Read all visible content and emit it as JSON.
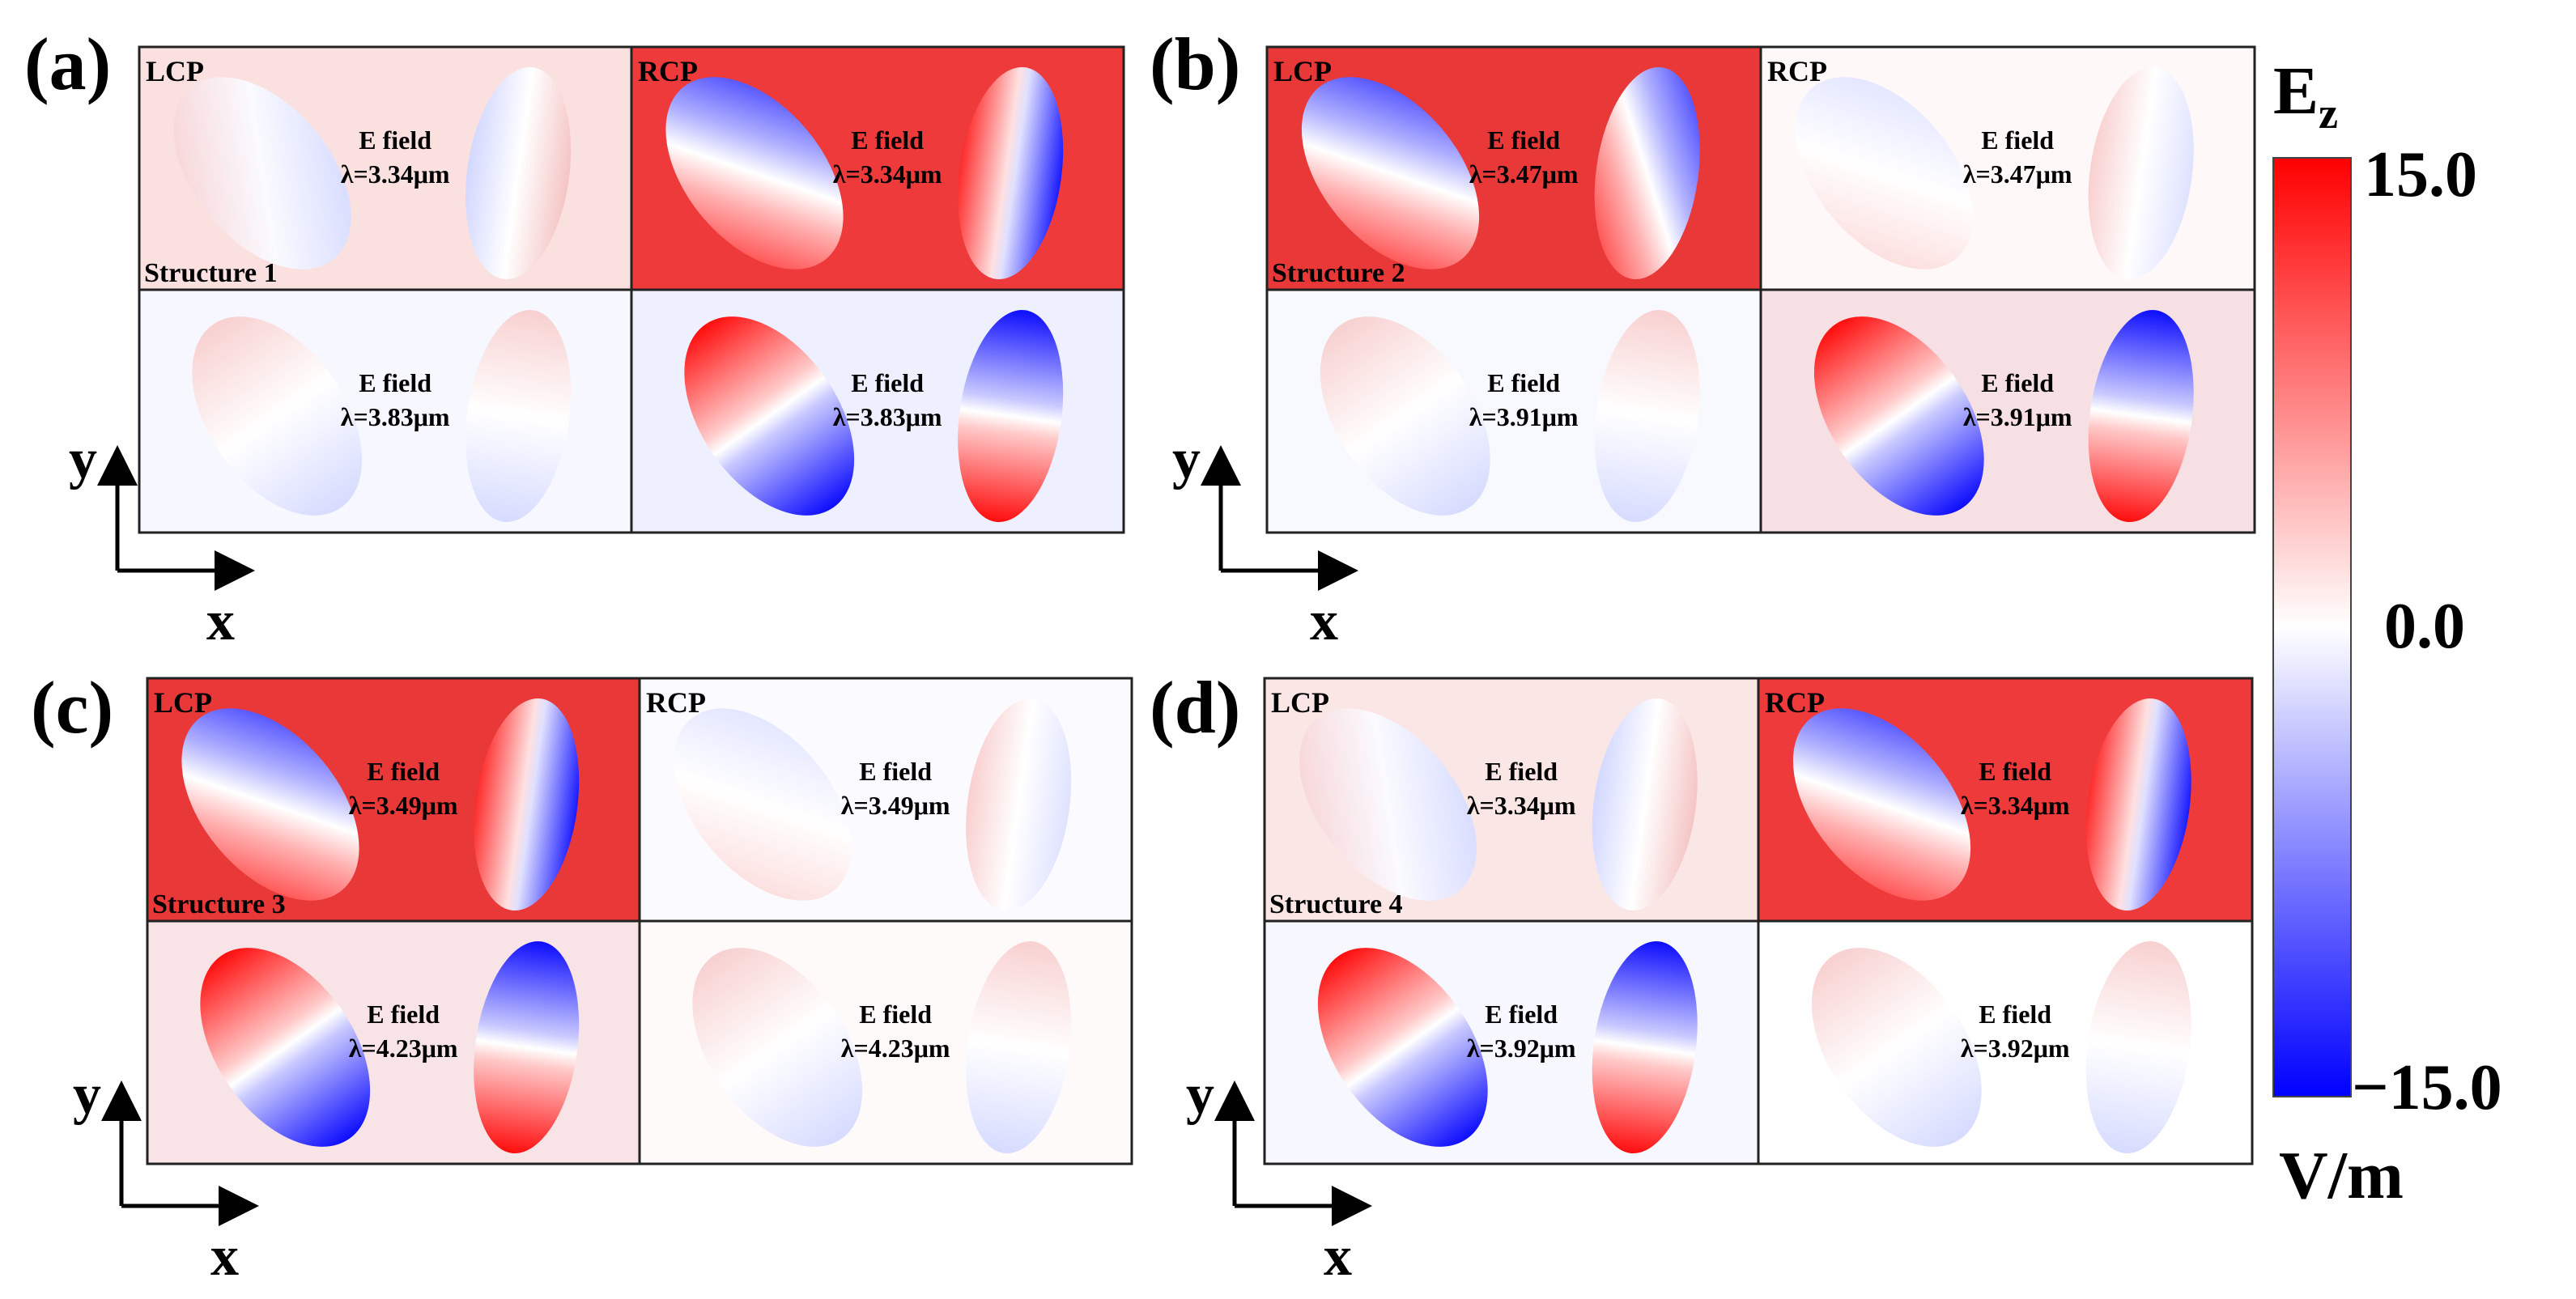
{
  "colorbar": {
    "symbol": "E",
    "subscript": "z",
    "max_label": "15.0",
    "mid_label": "0.0",
    "min_label": "−15.0",
    "unit": "V/m",
    "colors": {
      "max": "#ff0000",
      "mid": "#ffffff",
      "min": "#0000ff"
    }
  },
  "axes": {
    "x": "x",
    "y": "y"
  },
  "panels": [
    {
      "letter": "(a)",
      "structure": "Structure 1",
      "cells": [
        {
          "pol": "LCP",
          "field_label": "E field",
          "wavelength": "λ=3.34μm",
          "bg": "#fbe0e0",
          "left_ellipse": "diag-red-blue",
          "right_ellipse": "vert-blue-red"
        },
        {
          "pol": "RCP",
          "field_label": "E field",
          "wavelength": "λ=3.34μm",
          "bg": "#ee3a3a",
          "left_ellipse": "diag-strong",
          "right_ellipse": "vert-strong"
        },
        {
          "pol": "",
          "field_label": "E field",
          "wavelength": "λ=3.83μm",
          "bg": "#f6f7ff",
          "left_ellipse": "horiz-weak",
          "right_ellipse": "horiz-weak"
        },
        {
          "pol": "",
          "field_label": "E field",
          "wavelength": "λ=3.83μm",
          "bg": "#eef0ff",
          "left_ellipse": "horiz-strong",
          "right_ellipse": "horiz-strong-inv"
        }
      ]
    },
    {
      "letter": "(b)",
      "structure": "Structure 2",
      "cells": [
        {
          "pol": "LCP",
          "field_label": "E field",
          "wavelength": "λ=3.47μm",
          "bg": "#e83838",
          "left_ellipse": "diag-strong",
          "right_ellipse": "diag-strong"
        },
        {
          "pol": "RCP",
          "field_label": "E field",
          "wavelength": "λ=3.47μm",
          "bg": "#fff8f8",
          "left_ellipse": "diag-weak",
          "right_ellipse": "vert-weak"
        },
        {
          "pol": "",
          "field_label": "E field",
          "wavelength": "λ=3.91μm",
          "bg": "#f8f8ff",
          "left_ellipse": "horiz-weak",
          "right_ellipse": "horiz-weak"
        },
        {
          "pol": "",
          "field_label": "E field",
          "wavelength": "λ=3.91μm",
          "bg": "#f7e0e4",
          "left_ellipse": "horiz-strong",
          "right_ellipse": "horiz-strong-inv"
        }
      ]
    },
    {
      "letter": "(c)",
      "structure": "Structure 3",
      "cells": [
        {
          "pol": "LCP",
          "field_label": "E field",
          "wavelength": "λ=3.49μm",
          "bg": "#e83838",
          "left_ellipse": "diag-strong",
          "right_ellipse": "vert-strong"
        },
        {
          "pol": "RCP",
          "field_label": "E field",
          "wavelength": "λ=3.49μm",
          "bg": "#fbfbff",
          "left_ellipse": "diag-weak",
          "right_ellipse": "vert-weak"
        },
        {
          "pol": "",
          "field_label": "E field",
          "wavelength": "λ=4.23μm",
          "bg": "#f8e4e6",
          "left_ellipse": "horiz-strong",
          "right_ellipse": "horiz-strong-inv"
        },
        {
          "pol": "",
          "field_label": "E field",
          "wavelength": "λ=4.23μm",
          "bg": "#fffafa",
          "left_ellipse": "horiz-weak",
          "right_ellipse": "horiz-weak"
        }
      ]
    },
    {
      "letter": "(d)",
      "structure": "Structure 4",
      "cells": [
        {
          "pol": "LCP",
          "field_label": "E field",
          "wavelength": "λ=3.34μm",
          "bg": "#fbe6e6",
          "left_ellipse": "diag-red-blue",
          "right_ellipse": "vert-blue-red"
        },
        {
          "pol": "RCP",
          "field_label": "E field",
          "wavelength": "λ=3.34μm",
          "bg": "#ee3a3a",
          "left_ellipse": "diag-strong",
          "right_ellipse": "vert-strong"
        },
        {
          "pol": "",
          "field_label": "E field",
          "wavelength": "λ=3.92μm",
          "bg": "#f7f7ff",
          "left_ellipse": "horiz-strong",
          "right_ellipse": "horiz-strong-inv"
        },
        {
          "pol": "",
          "field_label": "E field",
          "wavelength": "λ=3.92μm",
          "bg": "#ffffff",
          "left_ellipse": "horiz-weak",
          "right_ellipse": "horiz-weak"
        }
      ]
    }
  ]
}
